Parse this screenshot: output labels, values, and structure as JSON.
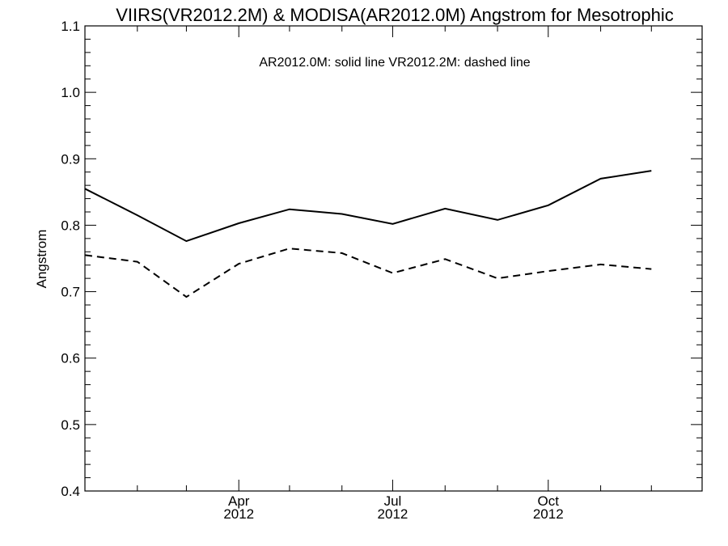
{
  "chart_data": {
    "type": "line",
    "title": "VIIRS(VR2012.2M) & MODISA(AR2012.0M)  Angstrom for Mesotrophic",
    "ylabel": "Angstrom",
    "xlabel": "",
    "annotation": "AR2012.0M: solid line   VR2012.2M: dashed line",
    "x": [
      "2012-01-01",
      "2012-02-01",
      "2012-03-01",
      "2012-04-01",
      "2012-05-01",
      "2012-06-01",
      "2012-07-01",
      "2012-08-01",
      "2012-09-01",
      "2012-10-01",
      "2012-11-01",
      "2012-12-01"
    ],
    "xlim": [
      "2012-01-01",
      "2012-12-31"
    ],
    "ylim": [
      0.4,
      1.1
    ],
    "yticks": [
      "0.4",
      "0.5",
      "0.6",
      "0.7",
      "0.8",
      "0.9",
      "1.0",
      "1.1"
    ],
    "xticks": [
      {
        "date": "2012-04-01",
        "month": "Apr",
        "year": "2012"
      },
      {
        "date": "2012-07-01",
        "month": "Jul",
        "year": "2012"
      },
      {
        "date": "2012-10-01",
        "month": "Oct",
        "year": "2012"
      }
    ],
    "series": [
      {
        "key": "ar2012",
        "style": "solid",
        "values": [
          0.855,
          0.815,
          0.776,
          0.803,
          0.824,
          0.817,
          0.802,
          0.825,
          0.808,
          0.83,
          0.87,
          0.882
        ]
      },
      {
        "key": "vr2012",
        "style": "dashed",
        "values": [
          0.755,
          0.745,
          0.692,
          0.742,
          0.765,
          0.758,
          0.728,
          0.749,
          0.72,
          0.731,
          0.741,
          0.734
        ]
      }
    ],
    "grid": false,
    "line_color": "#000000"
  }
}
